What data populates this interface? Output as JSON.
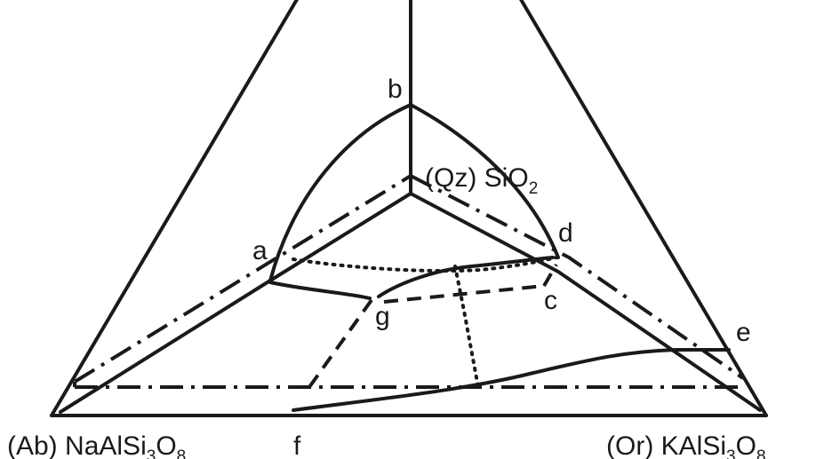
{
  "labels": {
    "a": "a",
    "b": "b",
    "c": "c",
    "d": "d",
    "e": "e",
    "f": "f",
    "g": "g"
  },
  "components": {
    "qz": {
      "abbr": "(Qz)",
      "formula": "SiO",
      "sub": "2"
    },
    "ab": {
      "abbr": "(Ab)",
      "formula": "NaAlSi",
      "sub1": "3",
      "mid": "O",
      "sub2": "8"
    },
    "or": {
      "abbr": "(Or)",
      "formula": "KAlSi",
      "sub1": "3",
      "mid": "O",
      "sub2": "8"
    }
  }
}
